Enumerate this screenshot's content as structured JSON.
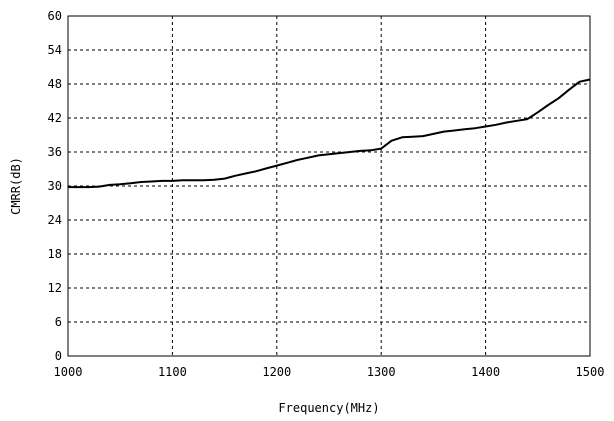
{
  "chart_data": {
    "type": "line",
    "title": "",
    "xlabel": "Frequency(MHz)",
    "ylabel": "CMRR(dB)",
    "xlim": [
      1000,
      1500
    ],
    "ylim": [
      0,
      60
    ],
    "xticks": [
      1000,
      1100,
      1200,
      1300,
      1400,
      1500
    ],
    "yticks": [
      0,
      6,
      12,
      18,
      24,
      30,
      36,
      42,
      48,
      54,
      60
    ],
    "grid": true,
    "legend": "none",
    "line_color": "#000000",
    "series": [
      {
        "x": [
          1000,
          1010,
          1020,
          1030,
          1040,
          1050,
          1060,
          1070,
          1080,
          1090,
          1100,
          1110,
          1120,
          1130,
          1140,
          1150,
          1160,
          1170,
          1180,
          1190,
          1200,
          1210,
          1220,
          1230,
          1240,
          1250,
          1260,
          1270,
          1280,
          1290,
          1300,
          1305,
          1310,
          1320,
          1330,
          1340,
          1350,
          1360,
          1370,
          1380,
          1390,
          1400,
          1410,
          1420,
          1430,
          1440,
          1450,
          1460,
          1470,
          1480,
          1490,
          1500
        ],
        "y": [
          29.8,
          29.8,
          29.8,
          29.9,
          30.2,
          30.3,
          30.5,
          30.7,
          30.8,
          30.9,
          30.9,
          31.0,
          31.0,
          31.0,
          31.1,
          31.3,
          31.8,
          32.2,
          32.6,
          33.1,
          33.6,
          34.1,
          34.6,
          35.0,
          35.4,
          35.6,
          35.8,
          36.0,
          36.2,
          36.3,
          36.6,
          37.3,
          38.0,
          38.6,
          38.7,
          38.8,
          39.2,
          39.6,
          39.8,
          40.0,
          40.2,
          40.5,
          40.8,
          41.2,
          41.5,
          41.8,
          43.0,
          44.3,
          45.5,
          47.0,
          48.4,
          48.8
        ]
      }
    ]
  }
}
